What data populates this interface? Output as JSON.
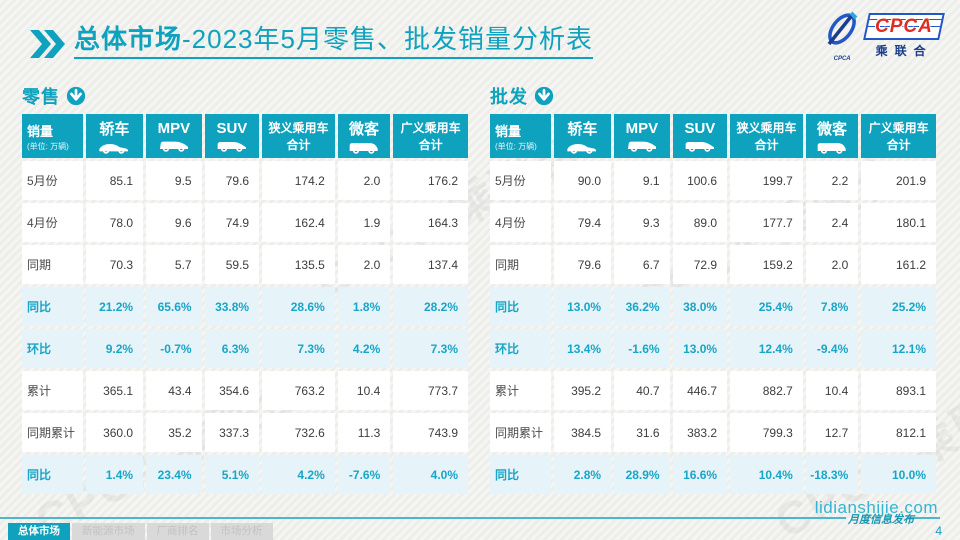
{
  "colors": {
    "accent": "#0ea2be",
    "highlight_text": "#18a6c6",
    "highlight_bg": "#e6f3f9",
    "logo_red": "#e02b20",
    "logo_navy": "#1b3e8c",
    "logo_blue": "#2356c9"
  },
  "header": {
    "title_bold": "总体市场",
    "title_rest": "-2023年5月零售、批发销量分析表",
    "logo": {
      "text": "CPCA",
      "sub": "乘联合",
      "swoosh_label": "CPCA"
    }
  },
  "watermark": "CPCA 乘联合",
  "columns": [
    {
      "label": "销量",
      "sub": "(单位: 万辆)"
    },
    {
      "label": "轿车",
      "icon": "sedan-icon"
    },
    {
      "label": "MPV",
      "icon": "mpv-icon"
    },
    {
      "label": "SUV",
      "icon": "suv-icon"
    },
    {
      "label": "狭义乘用车\n合计"
    },
    {
      "label": "微客",
      "icon": "microvan-icon"
    },
    {
      "label": "广义乘用车\n合计"
    }
  ],
  "tables": [
    {
      "section_label": "零售",
      "rows": [
        {
          "label": "5月份",
          "highlight": false,
          "values": [
            "85.1",
            "9.5",
            "79.6",
            "174.2",
            "2.0",
            "176.2"
          ]
        },
        {
          "label": "4月份",
          "highlight": false,
          "values": [
            "78.0",
            "9.6",
            "74.9",
            "162.4",
            "1.9",
            "164.3"
          ]
        },
        {
          "label": "同期",
          "highlight": false,
          "values": [
            "70.3",
            "5.7",
            "59.5",
            "135.5",
            "2.0",
            "137.4"
          ]
        },
        {
          "label": "同比",
          "highlight": true,
          "values": [
            "21.2%",
            "65.6%",
            "33.8%",
            "28.6%",
            "1.8%",
            "28.2%"
          ]
        },
        {
          "label": "环比",
          "highlight": true,
          "values": [
            "9.2%",
            "-0.7%",
            "6.3%",
            "7.3%",
            "4.2%",
            "7.3%"
          ]
        },
        {
          "label": "累计",
          "highlight": false,
          "values": [
            "365.1",
            "43.4",
            "354.6",
            "763.2",
            "10.4",
            "773.7"
          ]
        },
        {
          "label": "同期累计",
          "highlight": false,
          "values": [
            "360.0",
            "35.2",
            "337.3",
            "732.6",
            "11.3",
            "743.9"
          ]
        },
        {
          "label": "同比",
          "highlight": true,
          "values": [
            "1.4%",
            "23.4%",
            "5.1%",
            "4.2%",
            "-7.6%",
            "4.0%"
          ]
        }
      ]
    },
    {
      "section_label": "批发",
      "rows": [
        {
          "label": "5月份",
          "highlight": false,
          "values": [
            "90.0",
            "9.1",
            "100.6",
            "199.7",
            "2.2",
            "201.9"
          ]
        },
        {
          "label": "4月份",
          "highlight": false,
          "values": [
            "79.4",
            "9.3",
            "89.0",
            "177.7",
            "2.4",
            "180.1"
          ]
        },
        {
          "label": "同期",
          "highlight": false,
          "values": [
            "79.6",
            "6.7",
            "72.9",
            "159.2",
            "2.0",
            "161.2"
          ]
        },
        {
          "label": "同比",
          "highlight": true,
          "values": [
            "13.0%",
            "36.2%",
            "38.0%",
            "25.4%",
            "7.8%",
            "25.2%"
          ]
        },
        {
          "label": "环比",
          "highlight": true,
          "values": [
            "13.4%",
            "-1.6%",
            "13.0%",
            "12.4%",
            "-9.4%",
            "12.1%"
          ]
        },
        {
          "label": "累计",
          "highlight": false,
          "values": [
            "395.2",
            "40.7",
            "446.7",
            "882.7",
            "10.4",
            "893.1"
          ]
        },
        {
          "label": "同期累计",
          "highlight": false,
          "values": [
            "384.5",
            "31.6",
            "383.2",
            "799.3",
            "12.7",
            "812.1"
          ]
        },
        {
          "label": "同比",
          "highlight": true,
          "values": [
            "2.8%",
            "28.9%",
            "16.6%",
            "10.4%",
            "-18.3%",
            "10.0%"
          ]
        }
      ]
    }
  ],
  "footer": {
    "tabs": [
      {
        "label": "总体市场",
        "active": true
      },
      {
        "label": "新能源市场",
        "active": false
      },
      {
        "label": "厂商排名",
        "active": false
      },
      {
        "label": "市场分析",
        "active": false
      }
    ],
    "site": "lidianshijie.com",
    "slogan": "月度信息发布",
    "page_number": "4"
  }
}
